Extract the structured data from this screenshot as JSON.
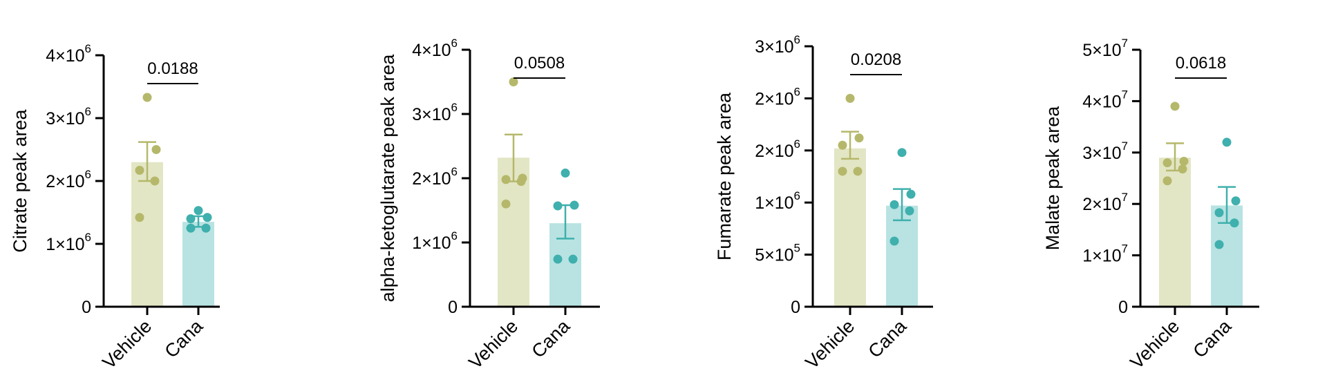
{
  "colors": {
    "Vehicle": "#b5b86a",
    "Cana": "#3fb0ad",
    "Vehicle_bar": "#e3e6c4",
    "Cana_bar": "#b8e3e2",
    "axis": "#000000"
  },
  "chart_data": [
    {
      "type": "bar",
      "ylabel": "Citrate peak area",
      "categories": [
        "Vehicle",
        "Cana"
      ],
      "ylim": [
        0,
        4000000
      ],
      "yticks": [
        {
          "value": 0,
          "base": "0",
          "exp": ""
        },
        {
          "value": 1000000,
          "base": "1×10",
          "exp": "6"
        },
        {
          "value": 2000000,
          "base": "2×10",
          "exp": "6"
        },
        {
          "value": 3000000,
          "base": "3×10",
          "exp": "6"
        },
        {
          "value": 4000000,
          "base": "4×10",
          "exp": "6"
        }
      ],
      "pvalue": "0.0188",
      "groups": [
        {
          "name": "Vehicle",
          "mean": 2300000,
          "sem_low": 2000000,
          "sem_high": 2620000,
          "points": [
            3330000,
            2500000,
            2170000,
            2000000,
            1420000
          ]
        },
        {
          "name": "Cana",
          "mean": 1350000,
          "sem_low": 1270000,
          "sem_high": 1440000,
          "points": [
            1530000,
            1420000,
            1400000,
            1250000,
            1250000
          ]
        }
      ]
    },
    {
      "type": "bar",
      "ylabel": "alpha-ketoglutarate peak area",
      "categories": [
        "Vehicle",
        "Cana"
      ],
      "ylim": [
        0,
        4000000
      ],
      "yticks": [
        {
          "value": 0,
          "base": "0",
          "exp": ""
        },
        {
          "value": 1000000,
          "base": "1×10",
          "exp": "6"
        },
        {
          "value": 2000000,
          "base": "2×10",
          "exp": "6"
        },
        {
          "value": 3000000,
          "base": "3×10",
          "exp": "6"
        },
        {
          "value": 4000000,
          "base": "4×10",
          "exp": "6"
        }
      ],
      "pvalue": "0.0508",
      "groups": [
        {
          "name": "Vehicle",
          "mean": 2320000,
          "sem_low": 1950000,
          "sem_high": 2680000,
          "points": [
            3500000,
            2000000,
            1980000,
            1950000,
            1600000
          ]
        },
        {
          "name": "Cana",
          "mean": 1300000,
          "sem_low": 1060000,
          "sem_high": 1580000,
          "points": [
            2080000,
            1580000,
            1570000,
            740000,
            740000
          ]
        }
      ]
    },
    {
      "type": "bar",
      "ylabel": "Fumarate peak area",
      "categories": [
        "Vehicle",
        "Cana"
      ],
      "ylim": [
        0,
        2500000
      ],
      "yticks": [
        {
          "value": 0,
          "base": "0",
          "exp": ""
        },
        {
          "value": 500000,
          "base": "5×10",
          "exp": "5"
        },
        {
          "value": 1000000,
          "base": "1×10",
          "exp": "6"
        },
        {
          "value": 1500000,
          "base": "2×10",
          "exp": "6"
        },
        {
          "value": 2000000,
          "base": "2×10",
          "exp": "6"
        },
        {
          "value": 2500000,
          "base": "3×10",
          "exp": "6"
        }
      ],
      "pvalue": "0.0208",
      "groups": [
        {
          "name": "Vehicle",
          "mean": 1520000,
          "sem_low": 1420000,
          "sem_high": 1680000,
          "points": [
            2000000,
            1620000,
            1550000,
            1300000,
            1300000
          ]
        },
        {
          "name": "Cana",
          "mean": 970000,
          "sem_low": 830000,
          "sem_high": 1130000,
          "points": [
            1480000,
            1080000,
            980000,
            920000,
            630000
          ]
        }
      ]
    },
    {
      "type": "bar",
      "ylabel": "Malate peak area",
      "categories": [
        "Vehicle",
        "Cana"
      ],
      "ylim": [
        0,
        50000000
      ],
      "yticks": [
        {
          "value": 0,
          "base": "0",
          "exp": ""
        },
        {
          "value": 10000000,
          "base": "1×10",
          "exp": "7"
        },
        {
          "value": 20000000,
          "base": "2×10",
          "exp": "7"
        },
        {
          "value": 30000000,
          "base": "3×10",
          "exp": "7"
        },
        {
          "value": 40000000,
          "base": "4×10",
          "exp": "7"
        },
        {
          "value": 50000000,
          "base": "5×10",
          "exp": "7"
        }
      ],
      "pvalue": "0.0618",
      "groups": [
        {
          "name": "Vehicle",
          "mean": 29000000,
          "sem_low": 26500000,
          "sem_high": 31800000,
          "points": [
            39000000,
            28300000,
            28000000,
            26800000,
            24500000
          ]
        },
        {
          "name": "Cana",
          "mean": 19700000,
          "sem_low": 16300000,
          "sem_high": 23300000,
          "points": [
            32000000,
            20600000,
            18300000,
            16300000,
            12100000
          ]
        }
      ]
    }
  ]
}
